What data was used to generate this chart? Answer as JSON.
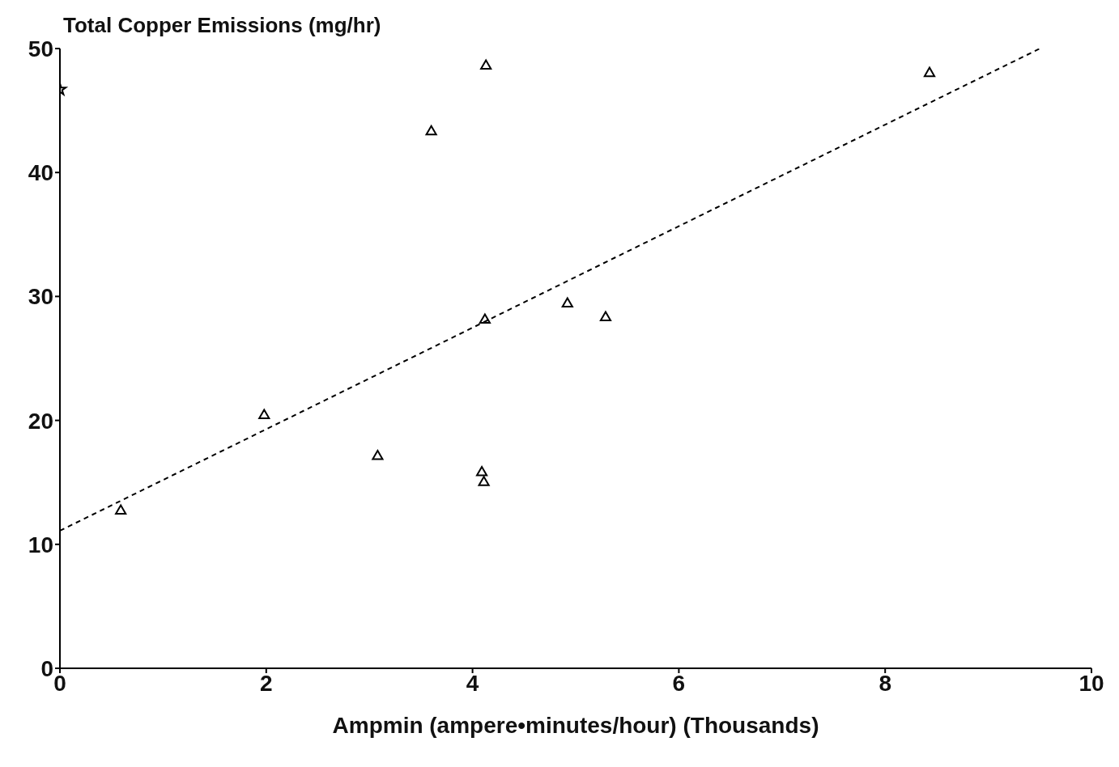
{
  "chart_data": {
    "type": "scatter",
    "ylabel": "Total Copper Emissions (mg/hr)",
    "xlabel": "Ampmin (ampere•minutes/hour) (Thousands)",
    "xlim": [
      0,
      10
    ],
    "xticks": [
      0,
      2,
      4,
      6,
      8,
      10
    ],
    "ylim": [
      0,
      50
    ],
    "yticks": [
      0,
      10,
      20,
      30,
      40,
      50
    ],
    "grid": false,
    "legend": false,
    "series": [
      {
        "marker": "triangle",
        "color": "#000000",
        "x": [
          0.59,
          1.98,
          3.08,
          3.6,
          4.13,
          4.12,
          4.09,
          4.11,
          4.92,
          5.29,
          8.43
        ],
        "values": [
          12.7,
          20.4,
          17.1,
          43.3,
          48.6,
          28.1,
          15.8,
          15.0,
          29.4,
          28.3,
          48.0
        ]
      },
      {
        "type": "scatter",
        "marker": "star",
        "color": "#000000",
        "x": [
          0
        ],
        "values": [
          46.7
        ]
      },
      {
        "type": "line",
        "marker": "none",
        "line_style": "dashed",
        "color": "#000000",
        "x": [
          0,
          9.5
        ],
        "values": [
          11.1,
          50
        ]
      }
    ]
  }
}
